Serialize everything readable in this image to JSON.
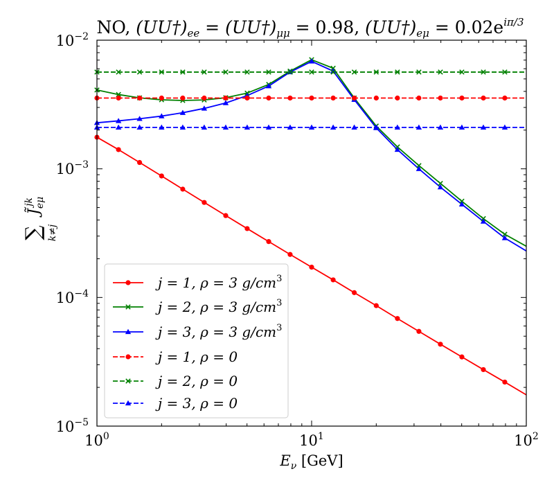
{
  "chart_data": {
    "type": "line",
    "title": "NO, (UU†)ee = (UU†)μμ = 0.98, (UU†)eμ = 0.02e^{iπ/3}",
    "title_parts": {
      "prefix": "NO, ",
      "ee": "(UU†)",
      "ee_sub": "ee",
      "eq1": " = ",
      "mm": "(UU†)",
      "mm_sub": "μμ",
      "eq2": " = 0.98, ",
      "em": "(UU†)",
      "em_sub": "eμ",
      "eq3": " = 0.02e",
      "exp": "iπ/3"
    },
    "xlabel": {
      "main": "E",
      "sub": "ν",
      "unit": " [GeV]"
    },
    "ylabel": {
      "sum": "∑",
      "sub": "k≠j",
      "main": "J̃",
      "sub2": "eμ",
      "sup": "jk"
    },
    "xscale": "log",
    "yscale": "log",
    "xlim": [
      1,
      100
    ],
    "ylim": [
      1e-05,
      0.01
    ],
    "xticks": [
      {
        "value": 1,
        "base": "10",
        "exp": "0"
      },
      {
        "value": 10,
        "base": "10",
        "exp": "1"
      },
      {
        "value": 100,
        "base": "10",
        "exp": "2"
      }
    ],
    "yticks": [
      {
        "value": 1e-05,
        "base": "10",
        "exp": "−5"
      },
      {
        "value": 0.0001,
        "base": "10",
        "exp": "−4"
      },
      {
        "value": 0.001,
        "base": "10",
        "exp": "−3"
      },
      {
        "value": 0.01,
        "base": "10",
        "exp": "−2"
      }
    ],
    "legend_position": "lower-left",
    "series": [
      {
        "name": "j = 1, ρ = 3 g/cm3",
        "label_main": "j = 1, ρ = 3 g/cm",
        "label_sup": "3",
        "color": "#ff0000",
        "dash": "solid",
        "marker": "circle",
        "x": [
          1,
          1.26,
          1.58,
          2,
          2.51,
          3.16,
          3.98,
          5.01,
          6.31,
          7.94,
          10,
          12.6,
          15.8,
          20,
          25.1,
          31.6,
          39.8,
          50.1,
          63.1,
          79.4,
          100
        ],
        "y": [
          0.00176,
          0.00141,
          0.00112,
          0.00088,
          0.000695,
          0.000548,
          0.000433,
          0.000343,
          0.000272,
          0.000216,
          0.000172,
          0.000137,
          0.000109,
          8.64e-05,
          6.86e-05,
          5.45e-05,
          4.33e-05,
          3.45e-05,
          2.75e-05,
          2.2e-05,
          1.75e-05
        ]
      },
      {
        "name": "j = 2, ρ = 3 g/cm3",
        "label_main": "j = 2, ρ = 3 g/cm",
        "label_sup": "3",
        "color": "#008000",
        "dash": "solid",
        "marker": "x",
        "x": [
          1,
          1.26,
          1.58,
          2,
          2.51,
          3.16,
          3.98,
          5.01,
          6.31,
          7.94,
          10,
          12.6,
          15.8,
          20,
          25.1,
          31.6,
          39.8,
          50.1,
          63.1,
          79.4,
          100
        ],
        "y": [
          0.0041,
          0.00378,
          0.00356,
          0.00344,
          0.0034,
          0.00343,
          0.00357,
          0.00388,
          0.00453,
          0.00575,
          0.00705,
          0.00605,
          0.00355,
          0.00215,
          0.00148,
          0.00106,
          0.00077,
          0.00056,
          0.00041,
          0.00031,
          0.00025
        ]
      },
      {
        "name": "j = 3, ρ = 3 g/cm3",
        "label_main": "j = 3, ρ = 3 g/cm",
        "label_sup": "3",
        "color": "#0000ff",
        "dash": "solid",
        "marker": "triangle",
        "x": [
          1,
          1.26,
          1.58,
          2,
          2.51,
          3.16,
          3.98,
          5.01,
          6.31,
          7.94,
          10,
          12.6,
          15.8,
          20,
          25.1,
          31.6,
          39.8,
          50.1,
          63.1,
          79.4,
          100
        ],
        "y": [
          0.00228,
          0.00236,
          0.00245,
          0.00257,
          0.00273,
          0.00295,
          0.00325,
          0.00371,
          0.0044,
          0.00565,
          0.00685,
          0.00575,
          0.00345,
          0.00208,
          0.00141,
          0.001,
          0.00072,
          0.00053,
          0.00039,
          0.00029,
          0.00023
        ]
      },
      {
        "name": "j = 1, ρ = 0",
        "label_main": "j = 1, ρ = 0",
        "label_sup": "",
        "color": "#ff0000",
        "dash": "dashed",
        "marker": "circle",
        "x": [
          1,
          1.26,
          1.58,
          2,
          2.51,
          3.16,
          3.98,
          5.01,
          6.31,
          7.94,
          10,
          12.6,
          15.8,
          20,
          25.1,
          31.6,
          39.8,
          50.1,
          63.1,
          79.4,
          100
        ],
        "y": [
          0.00355,
          0.00355,
          0.00355,
          0.00355,
          0.00355,
          0.00355,
          0.00355,
          0.00355,
          0.00355,
          0.00355,
          0.00355,
          0.00355,
          0.00355,
          0.00355,
          0.00355,
          0.00355,
          0.00355,
          0.00355,
          0.00355,
          0.00355,
          0.00355
        ]
      },
      {
        "name": "j = 2, ρ = 0",
        "label_main": "j = 2, ρ = 0",
        "label_sup": "",
        "color": "#008000",
        "dash": "dashed",
        "marker": "x",
        "x": [
          1,
          1.26,
          1.58,
          2,
          2.51,
          3.16,
          3.98,
          5.01,
          6.31,
          7.94,
          10,
          12.6,
          15.8,
          20,
          25.1,
          31.6,
          39.8,
          50.1,
          63.1,
          79.4,
          100
        ],
        "y": [
          0.00565,
          0.00565,
          0.00565,
          0.00565,
          0.00565,
          0.00565,
          0.00565,
          0.00565,
          0.00565,
          0.00565,
          0.00565,
          0.00565,
          0.00565,
          0.00565,
          0.00565,
          0.00565,
          0.00565,
          0.00565,
          0.00565,
          0.00565,
          0.00565
        ]
      },
      {
        "name": "j = 3, ρ = 0",
        "label_main": "j = 3, ρ = 0",
        "label_sup": "",
        "color": "#0000ff",
        "dash": "dashed",
        "marker": "triangle",
        "x": [
          1,
          1.26,
          1.58,
          2,
          2.51,
          3.16,
          3.98,
          5.01,
          6.31,
          7.94,
          10,
          12.6,
          15.8,
          20,
          25.1,
          31.6,
          39.8,
          50.1,
          63.1,
          79.4,
          100
        ],
        "y": [
          0.0021,
          0.0021,
          0.0021,
          0.0021,
          0.0021,
          0.0021,
          0.0021,
          0.0021,
          0.0021,
          0.0021,
          0.0021,
          0.0021,
          0.0021,
          0.0021,
          0.0021,
          0.0021,
          0.0021,
          0.0021,
          0.0021,
          0.0021,
          0.0021
        ]
      }
    ]
  }
}
